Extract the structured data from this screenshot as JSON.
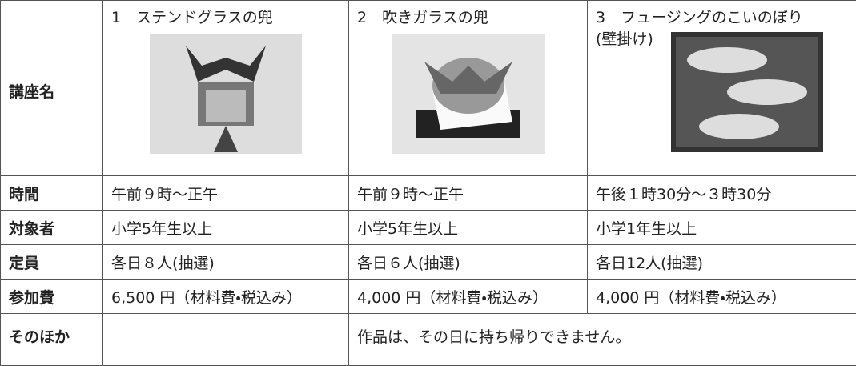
{
  "table": {
    "corner_label": "講座名",
    "courses": [
      {
        "title": "1　ステンドグラスの兜"
      },
      {
        "title": "2　吹きガラスの兜"
      },
      {
        "title": "3　フュージングのこいのぼり",
        "subtitle": "(壁掛け)"
      }
    ],
    "rows": [
      {
        "label": "時間",
        "cells": [
          "午前９時～正午",
          "午前９時～正午",
          "午後１時30分～３時30分"
        ]
      },
      {
        "label": "対象者",
        "cells": [
          "小学5年生以上",
          "小学5年生以上",
          "小学1年生以上"
        ]
      },
      {
        "label": "定員",
        "cells": [
          "各日８人(抽選)",
          "各日６人(抽選)",
          "各日12人(抽選)"
        ]
      },
      {
        "label": "参加費",
        "cells": [
          "6,500 円（材料費・税込み）",
          "4,000 円（材料費・税込み）",
          "4,000 円（材料費・税込み）"
        ]
      }
    ],
    "last_row": {
      "label": "そのほか",
      "note": "作品は、その日に持ち帰りできません。"
    }
  }
}
